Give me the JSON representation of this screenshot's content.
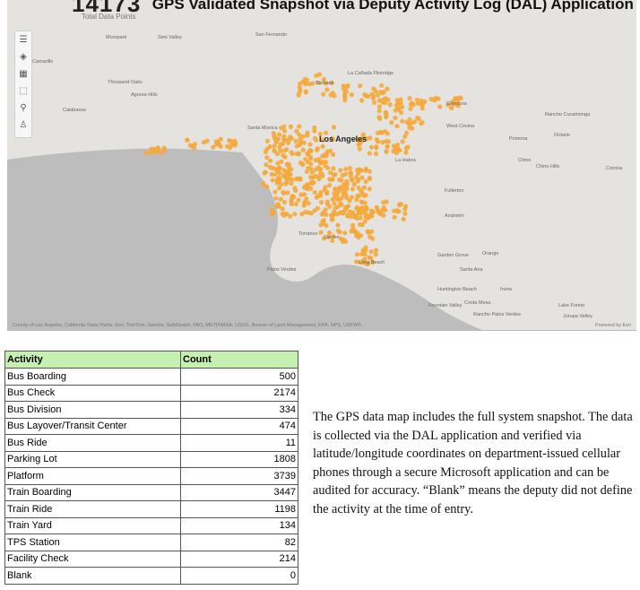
{
  "header": {
    "total_value": "14173",
    "title": "GPS Validated Snapshot via Deputy Activity Log (DAL) Application",
    "subtitle": "Total Data Points"
  },
  "map": {
    "land_color": "#e4e3e0",
    "water_color": "#bdbdbd",
    "point_color": "#f5a93b",
    "toolbar_icons": [
      "list-icon",
      "layers-icon",
      "grid-icon",
      "select-icon",
      "search-icon",
      "person-icon"
    ],
    "major_label": "Los Angeles",
    "place_labels": [
      "Moorpark",
      "Simi Valley",
      "San Fernando",
      "Camarillo",
      "Thousand Oaks",
      "La Cañada Flintridge",
      "Burbank",
      "Agoura Hills",
      "Calabasas",
      "Glendora",
      "Santa Monica",
      "West Covina",
      "Pomona",
      "Ontario",
      "Chino",
      "Chino Hills",
      "La Habra",
      "Fullerton",
      "Anaheim",
      "Orange",
      "Torrance",
      "Carson",
      "Long Beach",
      "Garden Grove",
      "Santa Ana",
      "Irvine",
      "Huntington Beach",
      "Costa Mesa",
      "Lake Forest",
      "Rancho Cucamonga",
      "Jurupa Valley",
      "Corona",
      "Palos Verdes",
      "Fountain Valley",
      "Rancho Palos Verdes"
    ],
    "attribution": "County of Los Angeles, California State Parks, Esri, TomTom, Garmin, SafeGraph, FAO, METI/NASA, USGS, Bureau of Land Management, EPA, NPS, USFWS",
    "powered_by": "Powered by Esri"
  },
  "activity_table": {
    "headers": [
      "Activity",
      "Count"
    ],
    "rows": [
      {
        "activity": "Bus Boarding",
        "count": "500"
      },
      {
        "activity": "Bus Check",
        "count": "2174"
      },
      {
        "activity": "Bus Division",
        "count": "334"
      },
      {
        "activity": "Bus Layover/Transit Center",
        "count": "474"
      },
      {
        "activity": "Bus Ride",
        "count": "11"
      },
      {
        "activity": "Parking Lot",
        "count": "1808"
      },
      {
        "activity": "Platform",
        "count": "3739"
      },
      {
        "activity": "Train Boarding",
        "count": "3447"
      },
      {
        "activity": "Train Ride",
        "count": "1198"
      },
      {
        "activity": "Train Yard",
        "count": "134"
      },
      {
        "activity": "TPS Station",
        "count": "82"
      },
      {
        "activity": "Facility Check",
        "count": "214"
      },
      {
        "activity": "Blank",
        "count": "0"
      }
    ]
  },
  "description": "The GPS data map includes the full system snapshot. The data is collected via the DAL application and verified via latitude/longitude coordinates on department-issued cellular phones through a secure Microsoft application and can be audited for accuracy. “Blank” means the deputy did not define the activity at the time of entry."
}
